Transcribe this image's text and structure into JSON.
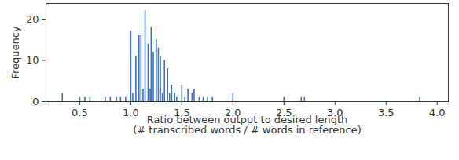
{
  "chart_data": {
    "type": "bar",
    "x_label": "Ratio between output to desired length\n(# transcribed words / # words in reference)",
    "y_label": "Frequency",
    "x": [
      0.33,
      0.5,
      0.55,
      0.6,
      0.75,
      0.8,
      0.86,
      0.9,
      0.95,
      1.0,
      1.02,
      1.05,
      1.08,
      1.1,
      1.12,
      1.14,
      1.17,
      1.19,
      1.2,
      1.22,
      1.25,
      1.27,
      1.29,
      1.31,
      1.33,
      1.36,
      1.38,
      1.4,
      1.43,
      1.45,
      1.5,
      1.53,
      1.56,
      1.6,
      1.62,
      1.67,
      1.71,
      1.75,
      1.8,
      2.0,
      2.5,
      2.67,
      2.7,
      3.83
    ],
    "values": [
      2,
      1,
      1,
      1,
      1,
      1,
      1,
      1,
      1,
      17,
      2,
      11,
      16,
      16,
      3,
      22,
      14,
      3,
      18,
      12,
      15,
      13,
      11,
      2,
      10,
      8,
      2,
      4,
      2,
      1,
      4,
      1,
      3,
      2,
      3,
      1,
      1,
      1,
      1,
      2,
      1,
      1,
      1,
      1
    ],
    "color": "#3b6fb6",
    "xlim": [
      0.17,
      4.11
    ],
    "xticks": [
      {
        "value": 0.5,
        "label": "0.5"
      },
      {
        "value": 1,
        "label": "1.0"
      },
      {
        "value": 1.5,
        "label": "1.5"
      },
      {
        "value": 2,
        "label": "2.0"
      },
      {
        "value": 2.5,
        "label": "2.5"
      },
      {
        "value": 3,
        "label": "3.0"
      },
      {
        "value": 3.5,
        "label": "3.5"
      },
      {
        "value": 4,
        "label": "4.0"
      }
    ],
    "ylim": [
      0,
      23.8
    ],
    "yticks": [
      0,
      10,
      20
    ]
  }
}
